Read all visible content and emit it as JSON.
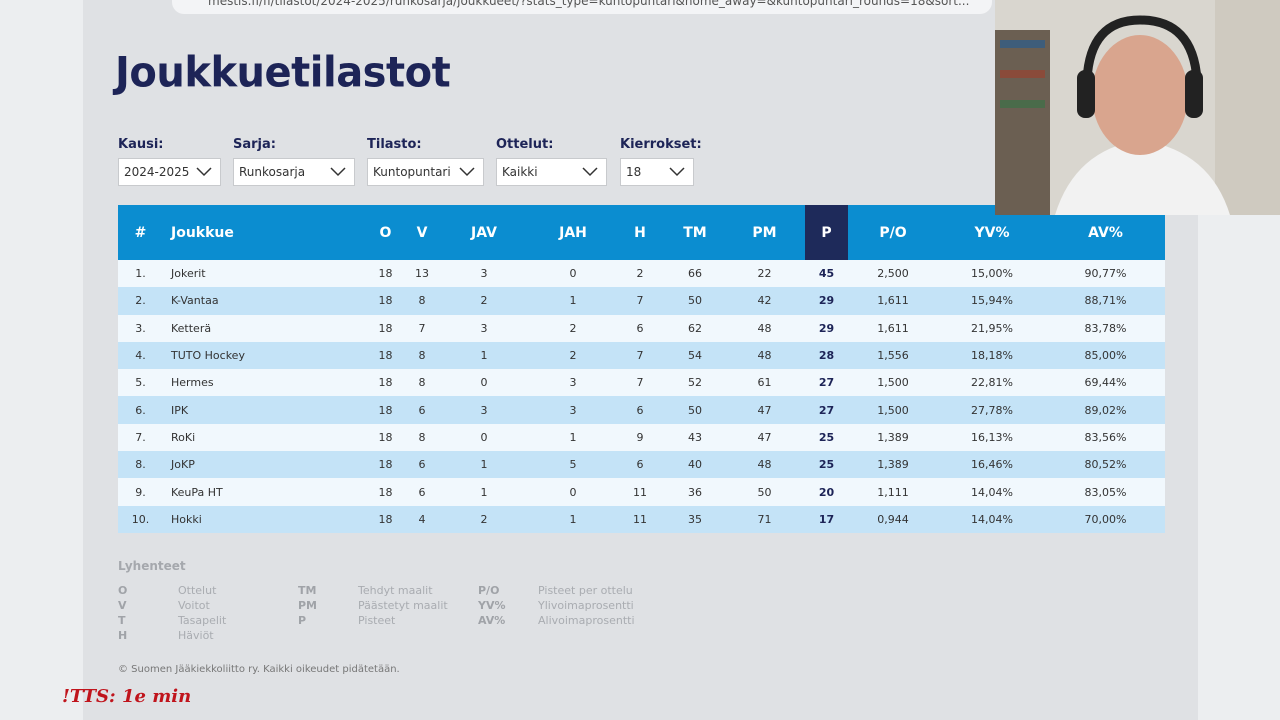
{
  "browser": {
    "url": "mestis.fi/fi/tilastot/2024-2025/runkosarja/joukkueet/?stats_type=kuntopuntari&home_away=&kuntopuntari_rounds=18&sort..."
  },
  "header": {
    "title": "Joukkuetilastot"
  },
  "filters": [
    {
      "label": "Kausi:",
      "value": "2024-2025"
    },
    {
      "label": "Sarja:",
      "value": "Runkosarja"
    },
    {
      "label": "Tilasto:",
      "value": "Kuntopuntari"
    },
    {
      "label": "Ottelut:",
      "value": "Kaikki"
    },
    {
      "label": "Kierrokset:",
      "value": "18"
    }
  ],
  "table": {
    "columns": [
      "#",
      "Joukkue",
      "O",
      "V",
      "JAV",
      "JAH",
      "H",
      "TM",
      "PM",
      "P",
      "P/O",
      "YV%",
      "AV%"
    ],
    "rows": [
      [
        "1.",
        "Jokerit",
        "18",
        "13",
        "3",
        "0",
        "2",
        "66",
        "22",
        "45",
        "2,500",
        "15,00%",
        "90,77%"
      ],
      [
        "2.",
        "K-Vantaa",
        "18",
        "8",
        "2",
        "1",
        "7",
        "50",
        "42",
        "29",
        "1,611",
        "15,94%",
        "88,71%"
      ],
      [
        "3.",
        "Ketterä",
        "18",
        "7",
        "3",
        "2",
        "6",
        "62",
        "48",
        "29",
        "1,611",
        "21,95%",
        "83,78%"
      ],
      [
        "4.",
        "TUTO Hockey",
        "18",
        "8",
        "1",
        "2",
        "7",
        "54",
        "48",
        "28",
        "1,556",
        "18,18%",
        "85,00%"
      ],
      [
        "5.",
        "Hermes",
        "18",
        "8",
        "0",
        "3",
        "7",
        "52",
        "61",
        "27",
        "1,500",
        "22,81%",
        "69,44%"
      ],
      [
        "6.",
        "IPK",
        "18",
        "6",
        "3",
        "3",
        "6",
        "50",
        "47",
        "27",
        "1,500",
        "27,78%",
        "89,02%"
      ],
      [
        "7.",
        "RoKi",
        "18",
        "8",
        "0",
        "1",
        "9",
        "43",
        "47",
        "25",
        "1,389",
        "16,13%",
        "83,56%"
      ],
      [
        "8.",
        "JoKP",
        "18",
        "6",
        "1",
        "5",
        "6",
        "40",
        "48",
        "25",
        "1,389",
        "16,46%",
        "80,52%"
      ],
      [
        "9.",
        "KeuPa HT",
        "18",
        "6",
        "1",
        "0",
        "11",
        "36",
        "50",
        "20",
        "1,111",
        "14,04%",
        "83,05%"
      ],
      [
        "10.",
        "Hokki",
        "18",
        "4",
        "2",
        "1",
        "11",
        "35",
        "71",
        "17",
        "0,944",
        "14,04%",
        "70,00%"
      ]
    ]
  },
  "legend": {
    "title": "Lyhenteet",
    "groups": [
      [
        [
          "O",
          "Ottelut"
        ],
        [
          "V",
          "Voitot"
        ],
        [
          "T",
          "Tasapelit"
        ],
        [
          "H",
          "Häviöt"
        ]
      ],
      [
        [
          "TM",
          "Tehdyt maalit"
        ],
        [
          "PM",
          "Päästetyt maalit"
        ],
        [
          "P",
          "Pisteet"
        ]
      ],
      [
        [
          "P/O",
          "Pisteet per ottelu"
        ],
        [
          "YV%",
          "Ylivoimaprosentti"
        ],
        [
          "AV%",
          "Alivoimaprosentti"
        ]
      ]
    ]
  },
  "footer": "© Suomen Jääkiekkoliitto ry. Kaikki oikeudet pidätetään.",
  "overlay": "!TTS: 1e min"
}
